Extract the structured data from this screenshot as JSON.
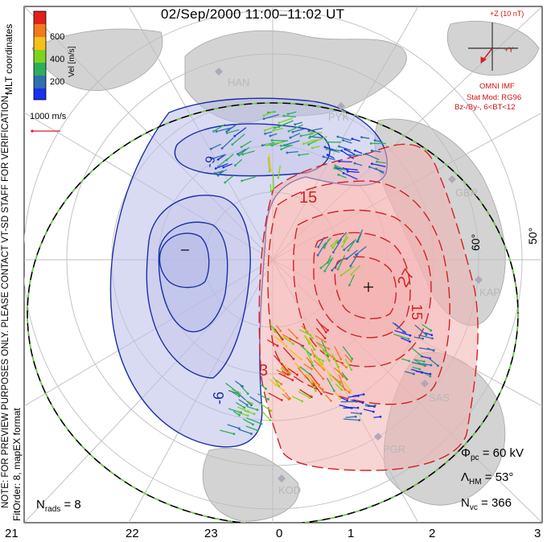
{
  "title": "02/Sep/2000 11:00–11:02 UT",
  "colorbar": {
    "label": "Vel [m/s]",
    "ticks": [
      "600",
      "400",
      "200"
    ],
    "colors": [
      "#e0201c",
      "#f07a1c",
      "#f6c01c",
      "#7ed321",
      "#2eae5c",
      "#2f6fb0",
      "#1b2ff0"
    ]
  },
  "side_text": {
    "coords": "MLT coordinates",
    "notice": "NOTE: FOR PREVIEW PURPOSES ONLY. PLEASE CONTACT VT-SD STAFF FOR VERIFICATION.",
    "fit": "FitOrder: 8, mapEX format"
  },
  "scale": {
    "label": "1000 m/s"
  },
  "imf": {
    "bz_label": "+Z (10 nT)",
    "by_label": "+Y",
    "source": "OMNI IMF",
    "model": "Stat Mod: RG96",
    "condition": "Bz-/By-, 6<BT<12"
  },
  "stats": {
    "phi_sym": "Φ",
    "phi_sub": "pc",
    "phi_val": "= 60 kV",
    "lam_sym": "Λ",
    "lam_sub": "HM",
    "lam_val": "= 53°",
    "nvc_sym": "N",
    "nvc_sub": "vc",
    "nvc_val": "= 366",
    "nrads_sym": "N",
    "nrads_sub": "rads",
    "nrads_val": "= 8"
  },
  "mlt_axis": [
    "21",
    "22",
    "23",
    "0",
    "1",
    "2",
    "3"
  ],
  "latitude_labels": [
    "50°",
    "60°"
  ],
  "stations": [
    "HAN",
    "PYK",
    "GBR",
    "KAP",
    "SAS",
    "PGR",
    "KOD"
  ],
  "contour_labels": {
    "neg": [
      "-9",
      "-6"
    ],
    "pos": [
      "3",
      "15",
      "15",
      "27"
    ],
    "min_marker": "–",
    "max_marker": "+"
  },
  "colors": {
    "negative": "#1a2fa8",
    "positive": "#d42020",
    "neg_fill": "#a8aee0",
    "pos_fill": "#ee8c8c",
    "hmb": "#6fd24a",
    "land": "#c8c8c8",
    "grid": "#bdbdbd"
  }
}
